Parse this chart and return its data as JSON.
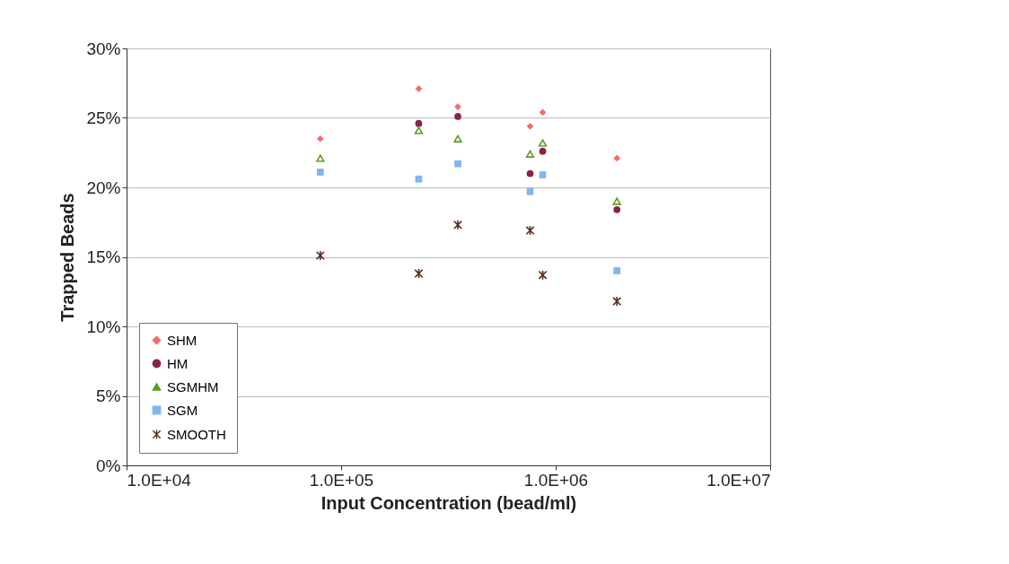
{
  "chart_data": {
    "type": "scatter",
    "xlabel": "Input Concentration (bead/ml)",
    "ylabel": "Trapped Beads",
    "log": "x",
    "xlim": [
      10000,
      10000000
    ],
    "xticks": [
      {
        "value": 10000,
        "label": "1.0E+04"
      },
      {
        "value": 100000,
        "label": "1.0E+05"
      },
      {
        "value": 1000000,
        "label": "1.0E+06"
      },
      {
        "value": 10000000,
        "label": "1.0E+07"
      }
    ],
    "ylim": [
      0,
      30
    ],
    "yticks": [
      {
        "value": 0,
        "label": "0%"
      },
      {
        "value": 5,
        "label": "5%"
      },
      {
        "value": 10,
        "label": "10%"
      },
      {
        "value": 15,
        "label": "15%"
      },
      {
        "value": 20,
        "label": "20%"
      },
      {
        "value": 25,
        "label": "25%"
      },
      {
        "value": 30,
        "label": "30%"
      }
    ],
    "grid": "y",
    "legend": "bottom left",
    "x": [
      80000,
      230000,
      350000,
      760000,
      870000,
      1930000
    ],
    "series": [
      {
        "name": "SHM",
        "color": "#f26d6d",
        "marker": "diamond",
        "values": [
          23.5,
          27.1,
          25.8,
          24.4,
          25.4,
          22.1
        ]
      },
      {
        "name": "HM",
        "color": "#8b2346",
        "marker": "circle",
        "values": [
          null,
          24.6,
          25.1,
          21.0,
          22.6,
          18.4
        ]
      },
      {
        "name": "SGMHM",
        "color": "#5a9e1e",
        "marker": "triangle",
        "values": [
          22.1,
          24.1,
          23.5,
          22.4,
          23.2,
          19.0
        ]
      },
      {
        "name": "SGM",
        "color": "#7fb6f0",
        "marker": "square",
        "values": [
          21.1,
          20.6,
          21.7,
          19.7,
          20.9,
          14.0
        ]
      },
      {
        "name": "SMOOTH",
        "color": "#5a2a1e",
        "marker": "cross",
        "values": [
          15.1,
          13.8,
          17.3,
          16.9,
          13.7,
          11.8
        ]
      }
    ]
  }
}
